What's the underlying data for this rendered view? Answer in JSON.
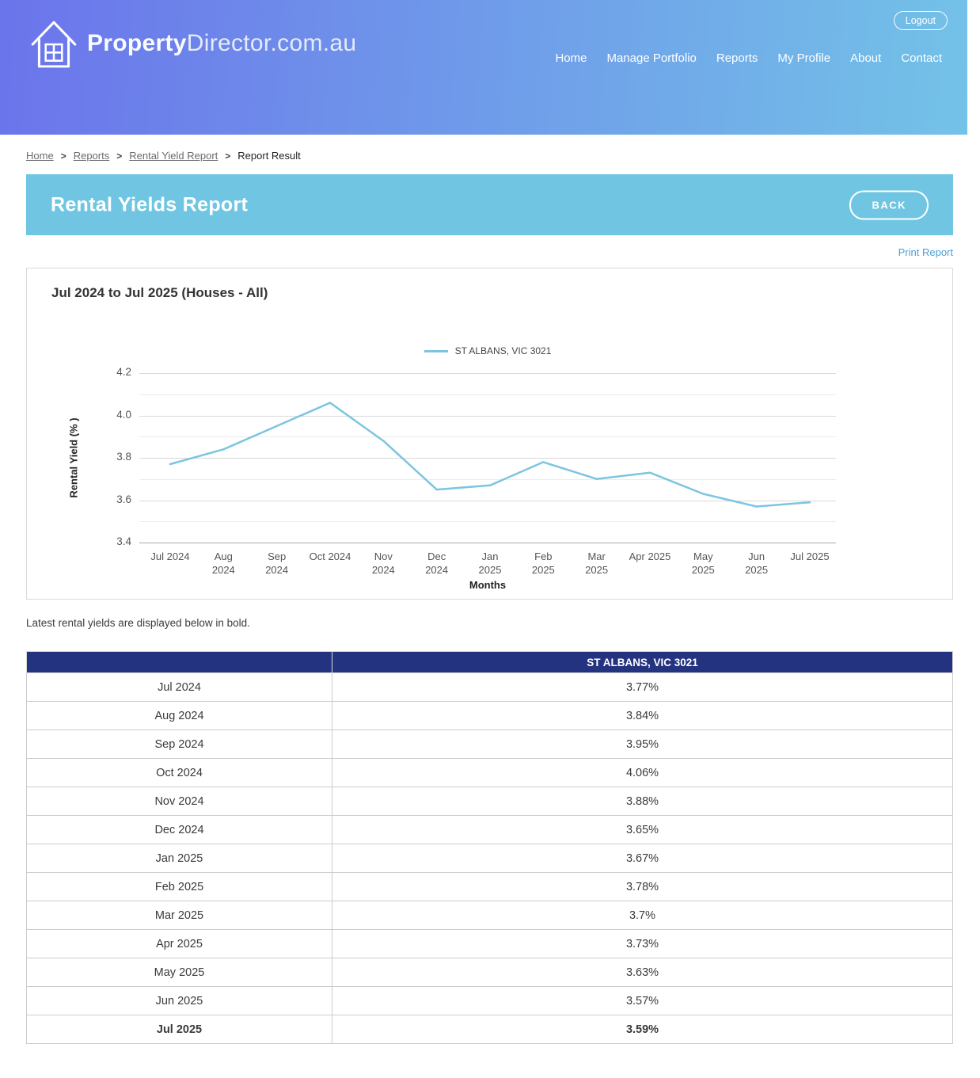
{
  "header": {
    "logo": {
      "bold": "Property",
      "light": "Director.com.au"
    },
    "nav": [
      {
        "label": "Home"
      },
      {
        "label": "Manage Portfolio"
      },
      {
        "label": "Reports"
      },
      {
        "label": "My Profile"
      },
      {
        "label": "About"
      },
      {
        "label": "Contact"
      }
    ],
    "logout_label": "Logout"
  },
  "breadcrumb": {
    "separator": ">",
    "items": [
      {
        "label": "Home",
        "link": true
      },
      {
        "label": "Reports",
        "link": true
      },
      {
        "label": "Rental Yield Report",
        "link": true
      },
      {
        "label": "Report Result",
        "link": false
      }
    ]
  },
  "banner": {
    "title": "Rental Yields Report",
    "back_label": "BACK"
  },
  "print_report_label": "Print Report",
  "note": "Latest rental yields are displayed below in bold.",
  "chart_data": {
    "type": "line",
    "title": "Jul 2024 to Jul 2025 (Houses - All)",
    "xlabel": "Months",
    "ylabel": "Rental Yield (% )",
    "ylim": [
      3.4,
      4.2
    ],
    "y_major_ticks": [
      "4.2",
      "4.0",
      "3.8",
      "3.6",
      "3.4"
    ],
    "y_minor_ticks": [
      4.1,
      3.9,
      3.7,
      3.5
    ],
    "grid": true,
    "legend_position": "top-center",
    "categories": [
      "Jul 2024",
      "Aug 2024",
      "Sep 2024",
      "Oct 2024",
      "Nov 2024",
      "Dec 2024",
      "Jan 2025",
      "Feb 2025",
      "Mar 2025",
      "Apr 2025",
      "May 2025",
      "Jun 2025",
      "Jul 2025"
    ],
    "x_tick_lines": [
      [
        "Jul 2024"
      ],
      [
        "Aug",
        "2024"
      ],
      [
        "Sep",
        "2024"
      ],
      [
        "Oct 2024"
      ],
      [
        "Nov",
        "2024"
      ],
      [
        "Dec",
        "2024"
      ],
      [
        "Jan",
        "2025"
      ],
      [
        "Feb",
        "2025"
      ],
      [
        "Mar",
        "2025"
      ],
      [
        "Apr 2025"
      ],
      [
        "May",
        "2025"
      ],
      [
        "Jun",
        "2025"
      ],
      [
        "Jul 2025"
      ]
    ],
    "series": [
      {
        "name": "ST ALBANS, VIC 3021",
        "color": "#7cc5e0",
        "values": [
          3.77,
          3.84,
          3.95,
          4.06,
          3.88,
          3.65,
          3.67,
          3.78,
          3.7,
          3.73,
          3.63,
          3.57,
          3.59
        ]
      }
    ]
  },
  "table": {
    "header": {
      "month_col": "",
      "value_col": "ST ALBANS, VIC 3021"
    },
    "rows": [
      {
        "month": "Jul 2024",
        "value": "3.77%",
        "bold": false
      },
      {
        "month": "Aug 2024",
        "value": "3.84%",
        "bold": false
      },
      {
        "month": "Sep 2024",
        "value": "3.95%",
        "bold": false
      },
      {
        "month": "Oct 2024",
        "value": "4.06%",
        "bold": false
      },
      {
        "month": "Nov 2024",
        "value": "3.88%",
        "bold": false
      },
      {
        "month": "Dec 2024",
        "value": "3.65%",
        "bold": false
      },
      {
        "month": "Jan 2025",
        "value": "3.67%",
        "bold": false
      },
      {
        "month": "Feb 2025",
        "value": "3.78%",
        "bold": false
      },
      {
        "month": "Mar 2025",
        "value": "3.7%",
        "bold": false
      },
      {
        "month": "Apr 2025",
        "value": "3.73%",
        "bold": false
      },
      {
        "month": "May 2025",
        "value": "3.63%",
        "bold": false
      },
      {
        "month": "Jun 2025",
        "value": "3.57%",
        "bold": false
      },
      {
        "month": "Jul 2025",
        "value": "3.59%",
        "bold": true
      }
    ]
  },
  "colors": {
    "header_gradient_start": "#6b74eb",
    "header_gradient_end": "#73c2e8",
    "banner_blue": "#70c6e2",
    "table_header_navy": "#243380",
    "series_line_blue": "#7cc5e0",
    "link_blue": "#4b9fd6"
  }
}
